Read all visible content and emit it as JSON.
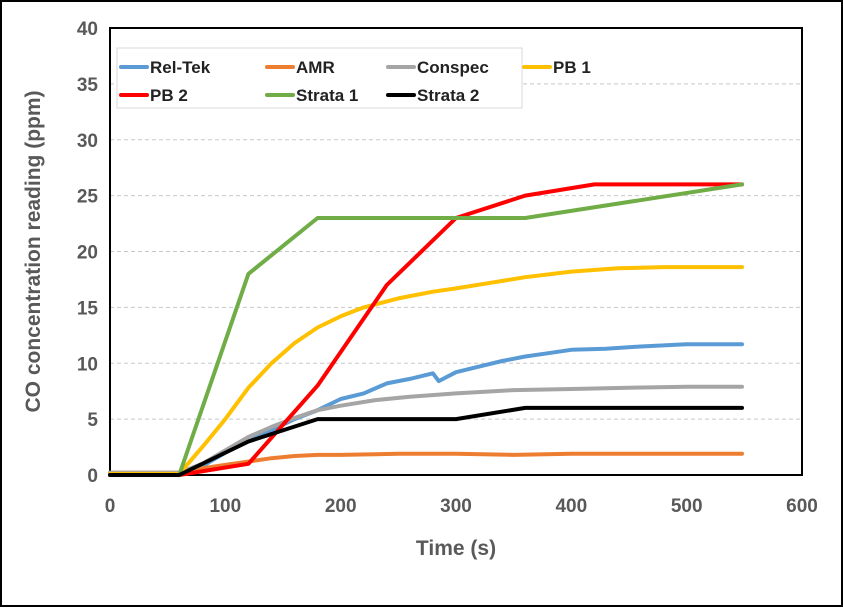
{
  "chart_data": {
    "type": "line",
    "title": "",
    "xlabel": "Time (s)",
    "ylabel": "CO concentration reading (ppm)",
    "xlim": [
      0,
      600
    ],
    "ylim": [
      0,
      40
    ],
    "x_ticks": [
      0,
      100,
      200,
      300,
      400,
      500,
      600
    ],
    "y_ticks": [
      0,
      5,
      10,
      15,
      20,
      25,
      30,
      35,
      40
    ],
    "grid": "horizontal dashed",
    "legend_position": "top-left (inside plot)",
    "series": [
      {
        "name": "Rel-Tek",
        "color": "#5B9BD5",
        "points": [
          [
            0,
            0.2
          ],
          [
            60,
            0.2
          ],
          [
            80,
            0.8
          ],
          [
            100,
            2.0
          ],
          [
            120,
            3.0
          ],
          [
            140,
            4.0
          ],
          [
            160,
            5.0
          ],
          [
            180,
            5.8
          ],
          [
            200,
            6.8
          ],
          [
            220,
            7.3
          ],
          [
            240,
            8.2
          ],
          [
            260,
            8.6
          ],
          [
            280,
            9.1
          ],
          [
            285,
            8.4
          ],
          [
            300,
            9.2
          ],
          [
            320,
            9.7
          ],
          [
            340,
            10.2
          ],
          [
            360,
            10.6
          ],
          [
            380,
            10.9
          ],
          [
            400,
            11.2
          ],
          [
            430,
            11.3
          ],
          [
            460,
            11.5
          ],
          [
            500,
            11.7
          ],
          [
            548,
            11.7
          ]
        ]
      },
      {
        "name": "AMR",
        "color": "#ED7D31",
        "points": [
          [
            0,
            0.2
          ],
          [
            60,
            0.2
          ],
          [
            80,
            0.6
          ],
          [
            100,
            0.9
          ],
          [
            120,
            1.2
          ],
          [
            140,
            1.5
          ],
          [
            160,
            1.7
          ],
          [
            180,
            1.8
          ],
          [
            200,
            1.8
          ],
          [
            250,
            1.9
          ],
          [
            300,
            1.9
          ],
          [
            350,
            1.8
          ],
          [
            400,
            1.9
          ],
          [
            450,
            1.9
          ],
          [
            500,
            1.9
          ],
          [
            548,
            1.9
          ]
        ]
      },
      {
        "name": "Conspec",
        "color": "#A5A5A5",
        "points": [
          [
            0,
            0.2
          ],
          [
            60,
            0.2
          ],
          [
            80,
            1.0
          ],
          [
            100,
            2.2
          ],
          [
            120,
            3.4
          ],
          [
            140,
            4.3
          ],
          [
            160,
            5.1
          ],
          [
            180,
            5.8
          ],
          [
            200,
            6.2
          ],
          [
            230,
            6.7
          ],
          [
            260,
            7.0
          ],
          [
            300,
            7.3
          ],
          [
            350,
            7.6
          ],
          [
            400,
            7.7
          ],
          [
            450,
            7.8
          ],
          [
            500,
            7.9
          ],
          [
            548,
            7.9
          ]
        ]
      },
      {
        "name": "PB 1",
        "color": "#FFC000",
        "points": [
          [
            0,
            0.1
          ],
          [
            60,
            0.1
          ],
          [
            80,
            2.5
          ],
          [
            100,
            5.0
          ],
          [
            120,
            7.8
          ],
          [
            140,
            10.0
          ],
          [
            160,
            11.8
          ],
          [
            180,
            13.2
          ],
          [
            200,
            14.2
          ],
          [
            220,
            15.0
          ],
          [
            250,
            15.8
          ],
          [
            280,
            16.4
          ],
          [
            300,
            16.7
          ],
          [
            330,
            17.2
          ],
          [
            360,
            17.7
          ],
          [
            400,
            18.2
          ],
          [
            440,
            18.5
          ],
          [
            480,
            18.6
          ],
          [
            520,
            18.6
          ],
          [
            548,
            18.6
          ]
        ]
      },
      {
        "name": "PB 2",
        "color": "#FF0000",
        "points": [
          [
            0,
            0.0
          ],
          [
            60,
            0.0
          ],
          [
            120,
            1.0
          ],
          [
            180,
            8.0
          ],
          [
            240,
            17.0
          ],
          [
            300,
            23.0
          ],
          [
            360,
            25.0
          ],
          [
            420,
            26.0
          ],
          [
            548,
            26.0
          ]
        ]
      },
      {
        "name": "Strata 1",
        "color": "#70AD47",
        "points": [
          [
            0,
            0.0
          ],
          [
            60,
            0.0
          ],
          [
            120,
            18.0
          ],
          [
            180,
            23.0
          ],
          [
            360,
            23.0
          ],
          [
            548,
            26.0
          ]
        ]
      },
      {
        "name": "Strata 2",
        "color": "#000000",
        "points": [
          [
            0,
            0.0
          ],
          [
            60,
            0.0
          ],
          [
            120,
            3.0
          ],
          [
            180,
            5.0
          ],
          [
            300,
            5.0
          ],
          [
            360,
            6.0
          ],
          [
            548,
            6.0
          ]
        ]
      }
    ]
  }
}
